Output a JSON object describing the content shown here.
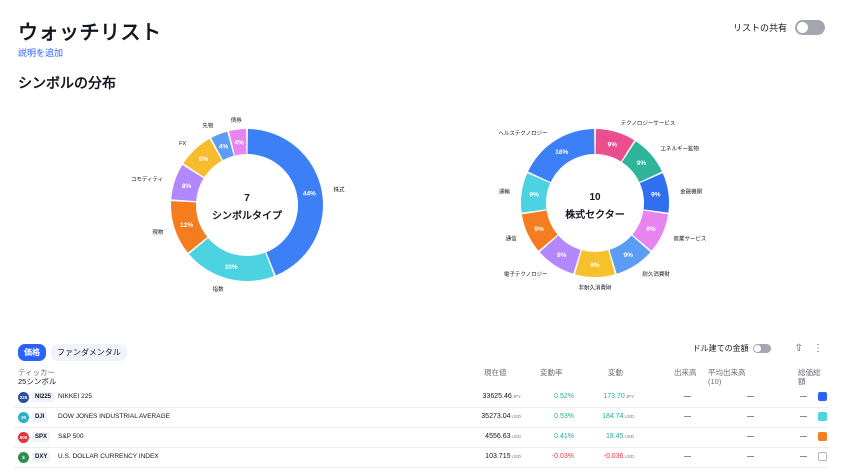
{
  "header": {
    "title": "ウォッチリスト",
    "add_description": "説明を追加",
    "share_label": "リストの共有"
  },
  "section_title": "シンボルの分布",
  "chart_data": [
    {
      "type": "pie",
      "center_count": "7",
      "center_label": "シンボルタイプ",
      "slices": [
        {
          "label": "株式",
          "value": 44,
          "text": "44%",
          "color": "#3c7ff6"
        },
        {
          "label": "指数",
          "value": 20,
          "text": "20%",
          "color": "#4dd2e2"
        },
        {
          "label": "現物",
          "value": 12,
          "text": "12%",
          "color": "#f57c1f"
        },
        {
          "label": "コモディティ",
          "value": 8,
          "text": "8%",
          "color": "#b388ff"
        },
        {
          "label": "FX",
          "value": 8,
          "text": "8%",
          "color": "#f6bc2e"
        },
        {
          "label": "先物",
          "value": 4,
          "text": "4%",
          "color": "#5b9cf5"
        },
        {
          "label": "債券",
          "value": 4,
          "text": "4%",
          "color": "#e884f0"
        }
      ]
    },
    {
      "type": "pie",
      "center_count": "10",
      "center_label": "株式セクター",
      "slices": [
        {
          "label": "テクノロジーサービス",
          "value": 9,
          "text": "9%",
          "color": "#ea4e8e"
        },
        {
          "label": "エネルギー鉱物",
          "value": 9,
          "text": "9%",
          "color": "#2fb39a"
        },
        {
          "label": "金融機関",
          "value": 9,
          "text": "9%",
          "color": "#2f6ff0"
        },
        {
          "label": "商業サービス",
          "value": 9,
          "text": "9%",
          "color": "#e884f0"
        },
        {
          "label": "耐久消費財",
          "value": 9,
          "text": "9%",
          "color": "#5b9cf5"
        },
        {
          "label": "非耐久消費財",
          "value": 9,
          "text": "9%",
          "color": "#f6c12c"
        },
        {
          "label": "電子テクノロジー",
          "value": 9,
          "text": "9%",
          "color": "#b388ff"
        },
        {
          "label": "通信",
          "value": 9,
          "text": "9%",
          "color": "#f57c1f"
        },
        {
          "label": "運輸",
          "value": 9,
          "text": "9%",
          "color": "#4dd2e2"
        },
        {
          "label": "ヘルステクノロジー",
          "value": 18,
          "text": "18%",
          "color": "#3c7ff6"
        }
      ]
    }
  ],
  "toolbar": {
    "tab_price": "価格",
    "tab_fundamental": "ファンダメンタル",
    "usd_total_label": "ドル建ての金額",
    "upload_icon": "⇧",
    "more_icon": "⋮"
  },
  "table": {
    "headers": {
      "ticker": "ティッカー",
      "count": "25シンボル",
      "price": "現在値",
      "change_pct": "変動率",
      "change": "変動",
      "volume": "出来高",
      "avg_volume": "平均出来高",
      "avg_volume_sub": "(10)",
      "ytd": "総価総額"
    },
    "rows": [
      {
        "logo": "225",
        "logo_color": "#2a4f9e",
        "symbol": "NI225",
        "name": "NIKKEI 225",
        "price": "33625.46",
        "unit": "JPY",
        "change_pct": "0.52%",
        "change": "173.70",
        "change_unit": "JPY",
        "dir": "green",
        "volume": "—",
        "avg_volume": "—",
        "ytd": "—",
        "check_color": "#2962ff"
      },
      {
        "logo": "30",
        "logo_color": "#2ab1c9",
        "symbol": "DJI",
        "name": "DOW JONES INDUSTRIAL AVERAGE",
        "price": "35273.04",
        "unit": "USD",
        "change_pct": "0.53%",
        "change": "184.74",
        "change_unit": "USD",
        "dir": "green",
        "volume": "—",
        "avg_volume": "—",
        "ytd": "—",
        "check_color": "#4dd2e2"
      },
      {
        "logo": "500",
        "logo_color": "#e0343c",
        "symbol": "SPX",
        "name": "S&P 500",
        "price": "4556.63",
        "unit": "USD",
        "change_pct": "0.41%",
        "change": "18.45",
        "change_unit": "USD",
        "dir": "green",
        "volume": "",
        "avg_volume": "—",
        "ytd": "—",
        "check_color": "#f57c1f"
      },
      {
        "logo": "$",
        "logo_color": "#2f8f4e",
        "symbol": "DXY",
        "name": "U.S. DOLLAR CURRENCY INDEX",
        "price": "103.715",
        "unit": "USD",
        "change_pct": "-0.03%",
        "change": "-0.036",
        "change_unit": "USD",
        "dir": "red",
        "volume": "—",
        "avg_volume": "—",
        "ytd": "—",
        "check_color": ""
      }
    ]
  }
}
